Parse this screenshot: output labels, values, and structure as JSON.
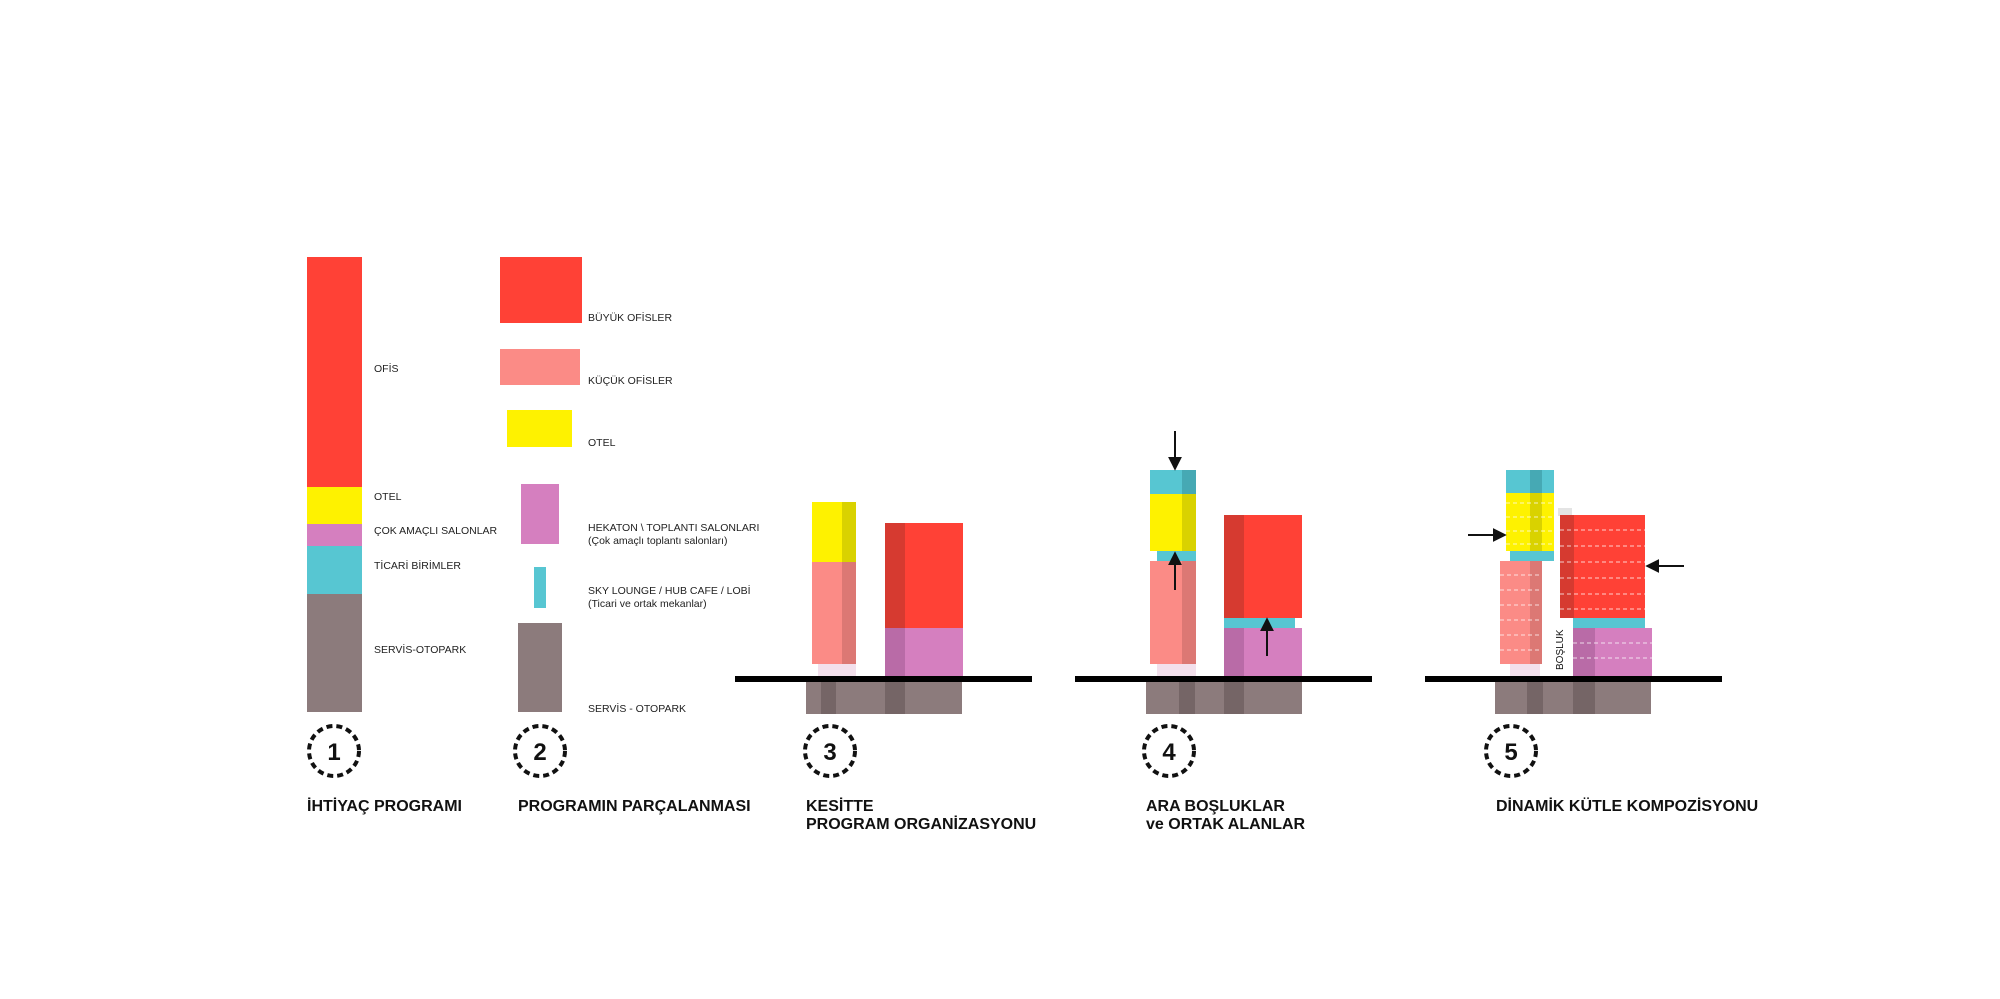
{
  "colors": {
    "office_large": "#ff4136",
    "office_large_dark": "#d63a30",
    "office_small": "#fb8b86",
    "office_small_dark": "#dc7874",
    "hotel": "#fef200",
    "hotel_dark": "#d9d200",
    "meeting": "#d57fbf",
    "meeting_dark": "#b96ba7",
    "commercial": "#57c6d2",
    "commercial_dark": "#46a9b4",
    "service": "#8c7b7c",
    "service_dark": "#756566",
    "ground": "#000000"
  },
  "panel1": {
    "labels": {
      "ofis": "OFİS",
      "otel": "OTEL",
      "salon": "ÇOK AMAÇLI SALONLAR",
      "ticari": "TİCARİ BİRİMLER",
      "servis": "SERVİS-OTOPARK"
    }
  },
  "panel2": {
    "labels": {
      "buyuk": "BÜYÜK OFİSLER",
      "kucuk": "KÜÇÜK OFİSLER",
      "otel": "OTEL",
      "hekaton1": "HEKATON \\ TOPLANTI SALONLARI",
      "hekaton2": "(Çok amaçlı toplantı salonları)",
      "sky1": "SKY LOUNGE / HUB CAFE / LOBİ",
      "sky2": "(Ticari ve ortak mekanlar)",
      "servis": "SERVİS - OTOPARK"
    }
  },
  "panel5": {
    "void_label": "BOŞLUK"
  },
  "steps": [
    {
      "number": "1",
      "title": [
        "İHTİYAÇ PROGRAMI"
      ]
    },
    {
      "number": "2",
      "title": [
        "PROGRAMIN PARÇALANMASI"
      ]
    },
    {
      "number": "3",
      "title": [
        "KESİTTE",
        "PROGRAM ORGANİZASYONU"
      ]
    },
    {
      "number": "4",
      "title": [
        "ARA BOŞLUKLAR",
        "ve ORTAK ALANLAR"
      ]
    },
    {
      "number": "5",
      "title": [
        "DİNAMİK KÜTLE KOMPOZİSYONU"
      ]
    }
  ]
}
